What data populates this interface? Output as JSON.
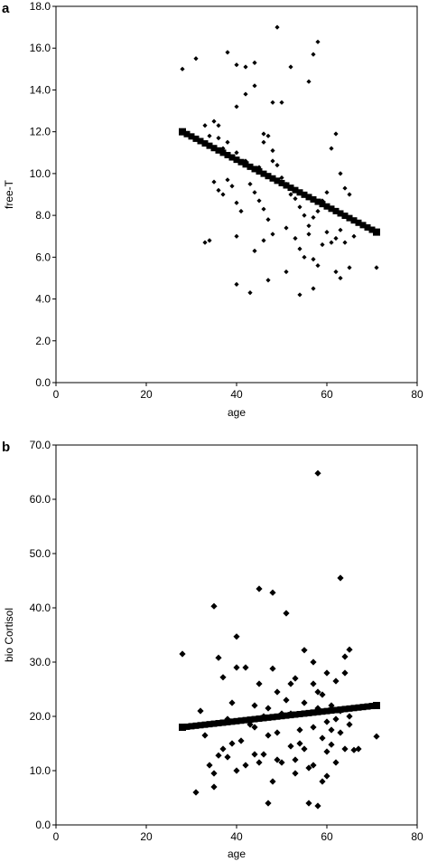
{
  "chart_data": [
    {
      "panel": "a",
      "type": "scatter",
      "xlabel": "age",
      "ylabel": "free-T",
      "xlim": [
        0,
        80
      ],
      "ylim": [
        0.0,
        18.0
      ],
      "xticks": [
        "0",
        "20",
        "40",
        "60",
        "80"
      ],
      "yticks": [
        "0.0",
        "2.0",
        "4.0",
        "6.0",
        "8.0",
        "10.0",
        "12.0",
        "14.0",
        "16.0",
        "18.0"
      ],
      "grid": false,
      "legend": "none",
      "marker_color": "#000000",
      "points": [
        [
          28,
          15.0
        ],
        [
          31,
          15.5
        ],
        [
          40,
          15.2
        ],
        [
          42,
          15.1
        ],
        [
          44,
          15.3
        ],
        [
          49,
          17.0
        ],
        [
          52,
          15.1
        ],
        [
          56,
          14.4
        ],
        [
          57,
          15.7
        ],
        [
          58,
          16.3
        ],
        [
          33,
          12.3
        ],
        [
          35,
          12.5
        ],
        [
          36,
          12.3
        ],
        [
          40,
          13.2
        ],
        [
          42,
          13.8
        ],
        [
          44,
          14.2
        ],
        [
          48,
          13.4
        ],
        [
          50,
          13.4
        ],
        [
          38,
          15.8
        ],
        [
          46,
          11.9
        ],
        [
          34,
          11.8
        ],
        [
          36,
          11.7
        ],
        [
          37,
          11.2
        ],
        [
          38,
          11.5
        ],
        [
          40,
          11.0
        ],
        [
          42,
          10.6
        ],
        [
          45,
          10.3
        ],
        [
          46,
          11.5
        ],
        [
          47,
          11.8
        ],
        [
          48,
          11.1
        ],
        [
          35,
          9.6
        ],
        [
          36,
          9.2
        ],
        [
          37,
          9.0
        ],
        [
          38,
          9.7
        ],
        [
          39,
          9.4
        ],
        [
          40,
          8.6
        ],
        [
          41,
          8.2
        ],
        [
          43,
          9.5
        ],
        [
          44,
          9.1
        ],
        [
          45,
          8.7
        ],
        [
          46,
          8.3
        ],
        [
          47,
          7.8
        ],
        [
          48,
          10.6
        ],
        [
          49,
          10.4
        ],
        [
          50,
          9.8
        ],
        [
          51,
          9.5
        ],
        [
          52,
          9.0
        ],
        [
          53,
          8.8
        ],
        [
          54,
          8.4
        ],
        [
          55,
          8.0
        ],
        [
          56,
          7.5
        ],
        [
          57,
          7.9
        ],
        [
          58,
          8.2
        ],
        [
          59,
          8.7
        ],
        [
          60,
          9.1
        ],
        [
          61,
          11.2
        ],
        [
          62,
          11.9
        ],
        [
          63,
          10.0
        ],
        [
          64,
          9.3
        ],
        [
          65,
          9.0
        ],
        [
          33,
          6.7
        ],
        [
          34,
          6.8
        ],
        [
          40,
          7.0
        ],
        [
          44,
          6.3
        ],
        [
          46,
          6.8
        ],
        [
          48,
          7.1
        ],
        [
          51,
          7.4
        ],
        [
          53,
          6.9
        ],
        [
          54,
          6.4
        ],
        [
          55,
          6.0
        ],
        [
          56,
          7.1
        ],
        [
          57,
          5.9
        ],
        [
          58,
          5.6
        ],
        [
          59,
          6.6
        ],
        [
          60,
          7.2
        ],
        [
          61,
          6.7
        ],
        [
          62,
          6.9
        ],
        [
          63,
          7.3
        ],
        [
          64,
          6.7
        ],
        [
          66,
          7.0
        ],
        [
          40,
          4.7
        ],
        [
          43,
          4.3
        ],
        [
          47,
          4.9
        ],
        [
          51,
          5.3
        ],
        [
          54,
          4.2
        ],
        [
          57,
          4.5
        ],
        [
          63,
          5.0
        ],
        [
          65,
          5.5
        ],
        [
          71,
          5.5
        ],
        [
          62,
          5.3
        ]
      ],
      "fit_line": {
        "x_start": 28,
        "y_start": 12.0,
        "x_end": 71,
        "y_end": 7.2,
        "marker_step": 1
      }
    },
    {
      "panel": "b",
      "type": "scatter",
      "xlabel": "age",
      "ylabel": "bio Cortisol",
      "xlim": [
        0,
        80
      ],
      "ylim": [
        0.0,
        70.0
      ],
      "xticks": [
        "0",
        "20",
        "40",
        "60",
        "80"
      ],
      "yticks": [
        "0.0",
        "10.0",
        "20.0",
        "30.0",
        "40.0",
        "50.0",
        "60.0",
        "70.0"
      ],
      "grid": false,
      "legend": "none",
      "marker_color": "#000000",
      "points": [
        [
          28,
          31.5
        ],
        [
          31,
          6.0
        ],
        [
          32,
          21.0
        ],
        [
          34,
          11.0
        ],
        [
          35,
          40.3
        ],
        [
          35,
          9.5
        ],
        [
          35,
          7.0
        ],
        [
          36,
          30.8
        ],
        [
          37,
          27.2
        ],
        [
          37,
          14.0
        ],
        [
          38,
          12.5
        ],
        [
          39,
          22.5
        ],
        [
          40,
          34.7
        ],
        [
          40,
          29.0
        ],
        [
          40,
          10.0
        ],
        [
          41,
          15.5
        ],
        [
          42,
          29.0
        ],
        [
          43,
          18.5
        ],
        [
          44,
          22.0
        ],
        [
          44,
          13.0
        ],
        [
          45,
          43.5
        ],
        [
          45,
          26.0
        ],
        [
          46,
          20.0
        ],
        [
          47,
          16.5
        ],
        [
          47,
          4.0
        ],
        [
          48,
          42.8
        ],
        [
          48,
          28.8
        ],
        [
          48,
          8.0
        ],
        [
          49,
          24.5
        ],
        [
          49,
          17.0
        ],
        [
          50,
          11.5
        ],
        [
          51,
          39.0
        ],
        [
          51,
          23.0
        ],
        [
          52,
          20.5
        ],
        [
          52,
          14.5
        ],
        [
          53,
          27.0
        ],
        [
          53,
          12.0
        ],
        [
          54,
          17.5
        ],
        [
          55,
          32.2
        ],
        [
          55,
          22.5
        ],
        [
          56,
          10.5
        ],
        [
          56,
          4.0
        ],
        [
          57,
          26.0
        ],
        [
          57,
          18.0
        ],
        [
          58,
          64.8
        ],
        [
          58,
          21.5
        ],
        [
          58,
          3.5
        ],
        [
          59,
          24.0
        ],
        [
          59,
          16.0
        ],
        [
          60,
          13.5
        ],
        [
          60,
          28.0
        ],
        [
          61,
          22.0
        ],
        [
          61,
          14.8
        ],
        [
          62,
          19.5
        ],
        [
          62,
          11.5
        ],
        [
          63,
          45.5
        ],
        [
          63,
          17.0
        ],
        [
          64,
          31.0
        ],
        [
          64,
          14.0
        ],
        [
          65,
          32.3
        ],
        [
          65,
          20.0
        ],
        [
          66,
          13.8
        ],
        [
          67,
          14.0
        ],
        [
          57,
          30.0
        ],
        [
          59,
          8.0
        ],
        [
          46,
          13.0
        ],
        [
          44,
          18.0
        ],
        [
          50,
          20.5
        ],
        [
          54,
          15.0
        ],
        [
          52,
          26.0
        ],
        [
          42,
          11.0
        ],
        [
          38,
          19.5
        ],
        [
          39,
          15.0
        ],
        [
          36,
          12.8
        ],
        [
          33,
          16.5
        ],
        [
          60,
          9.0
        ],
        [
          61,
          17.5
        ],
        [
          62,
          26.5
        ],
        [
          65,
          18.5
        ],
        [
          71,
          16.3
        ],
        [
          47,
          21.5
        ],
        [
          49,
          12.0
        ],
        [
          53,
          9.5
        ],
        [
          55,
          14.0
        ],
        [
          57,
          11.0
        ],
        [
          58,
          24.5
        ],
        [
          60,
          19.0
        ],
        [
          63,
          21.0
        ],
        [
          64,
          28.0
        ],
        [
          45,
          11.5
        ]
      ],
      "fit_line": {
        "x_start": 28,
        "y_start": 18.0,
        "x_end": 71,
        "y_end": 22.0,
        "marker_step": 1
      }
    }
  ]
}
